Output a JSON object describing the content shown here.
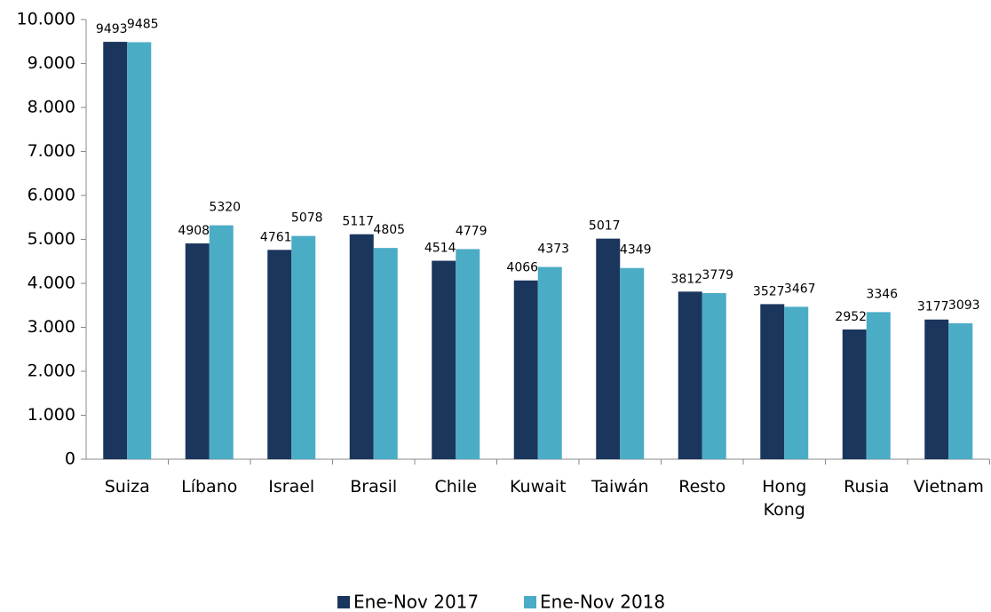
{
  "chart_data": {
    "type": "bar",
    "categories": [
      "Suiza",
      "Líbano",
      "Israel",
      "Brasil",
      "Chile",
      "Kuwait",
      "Taiwán",
      "Resto",
      "Hong Kong",
      "Rusia",
      "Vietnam"
    ],
    "series": [
      {
        "name": "Ene-Nov 2017",
        "color": "#1b365d",
        "values": [
          9493,
          4908,
          4761,
          5117,
          4514,
          4066,
          5017,
          3812,
          3527,
          2952,
          3177
        ]
      },
      {
        "name": "Ene-Nov 2018",
        "color": "#4bacc6",
        "values": [
          9485,
          5320,
          5078,
          4805,
          4779,
          4373,
          4349,
          3779,
          3467,
          3346,
          3093
        ]
      }
    ],
    "ylim": [
      0,
      10000
    ],
    "yticks": [
      0,
      {
        "value": 1000,
        "label": "1.000"
      },
      {
        "value": 2000,
        "label": "2.000"
      },
      {
        "value": 3000,
        "label": "3.000"
      },
      {
        "value": 4000,
        "label": "4.000"
      },
      {
        "value": 5000,
        "label": "5.000"
      },
      {
        "value": 6000,
        "label": "6.000"
      },
      {
        "value": 7000,
        "label": "7.000"
      },
      {
        "value": 8000,
        "label": "8.000"
      },
      {
        "value": 9000,
        "label": "9.000"
      },
      {
        "value": 10000,
        "label": "10.000"
      }
    ],
    "legend": "bottom"
  }
}
